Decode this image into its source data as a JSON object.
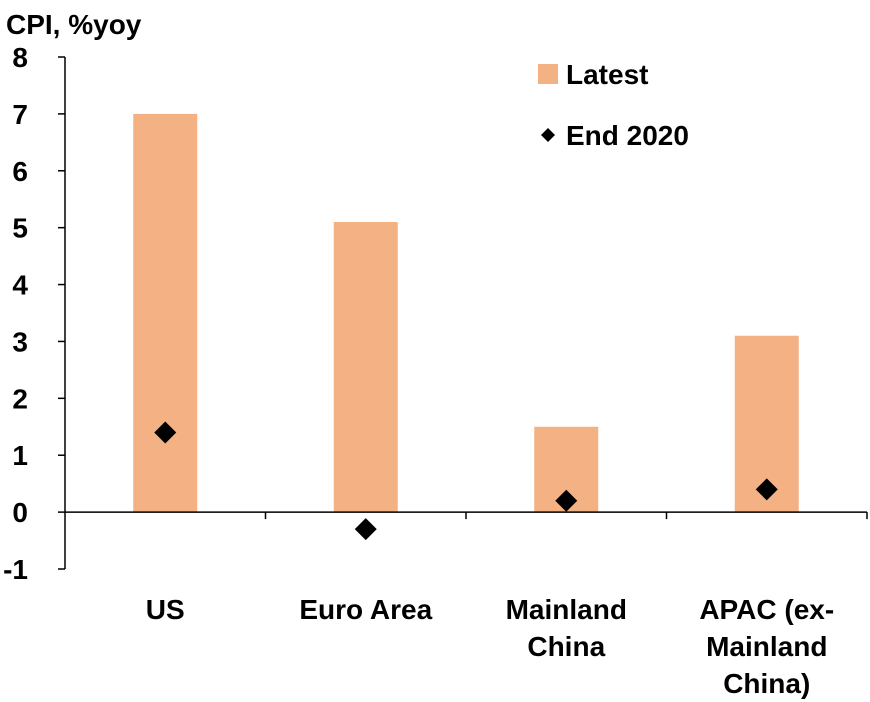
{
  "chart_data": {
    "type": "bar",
    "ylabel": "CPI, %yoy",
    "ylim": [
      -1,
      8
    ],
    "yticks": [
      -1,
      0,
      1,
      2,
      3,
      4,
      5,
      6,
      7,
      8
    ],
    "categories": [
      [
        "US"
      ],
      [
        "Euro Area"
      ],
      [
        "Mainland",
        "China"
      ],
      [
        "APAC (ex-",
        "Mainland",
        "China)"
      ]
    ],
    "series": [
      {
        "name": "Latest",
        "kind": "bar",
        "color": "#F4B183",
        "values": [
          7.0,
          5.1,
          1.5,
          3.1
        ]
      },
      {
        "name": "End 2020",
        "kind": "marker",
        "marker": "diamond",
        "color": "#000000",
        "values": [
          1.4,
          -0.3,
          0.2,
          0.4
        ]
      }
    ],
    "legend_position": "top-right",
    "grid": false
  }
}
